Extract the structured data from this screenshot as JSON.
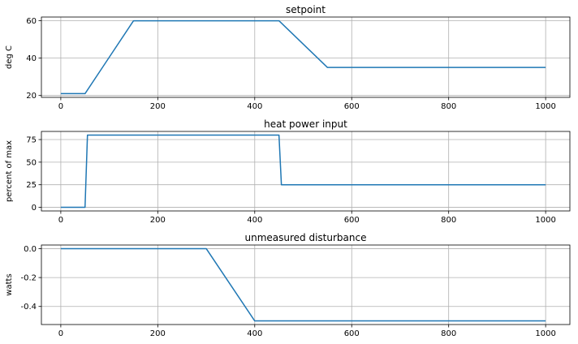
{
  "chart_data": [
    {
      "type": "line",
      "title": "setpoint",
      "xlabel": "",
      "ylabel": "deg C",
      "xlim": [
        -40,
        1050
      ],
      "ylim": [
        19,
        62
      ],
      "xticks": [
        0,
        200,
        400,
        600,
        800,
        1000
      ],
      "yticks": [
        20,
        40,
        60
      ],
      "grid": true,
      "series": [
        {
          "x": [
            0,
            50,
            150,
            450,
            550,
            1000
          ],
          "y": [
            21,
            21,
            60,
            60,
            35,
            35
          ]
        }
      ]
    },
    {
      "type": "line",
      "title": "heat power input",
      "xlabel": "",
      "ylabel": "percent of max",
      "xlim": [
        -40,
        1050
      ],
      "ylim": [
        -4,
        84
      ],
      "xticks": [
        0,
        200,
        400,
        600,
        800,
        1000
      ],
      "yticks": [
        0,
        25,
        50,
        75
      ],
      "grid": true,
      "series": [
        {
          "x": [
            0,
            50,
            55,
            450,
            455,
            1000
          ],
          "y": [
            0,
            0,
            80,
            80,
            25,
            25
          ]
        }
      ]
    },
    {
      "type": "line",
      "title": "unmeasured disturbance",
      "xlabel": "",
      "ylabel": "watts",
      "xlim": [
        -40,
        1050
      ],
      "ylim": [
        -0.525,
        0.025
      ],
      "xticks": [
        0,
        200,
        400,
        600,
        800,
        1000
      ],
      "yticks": [
        0.0,
        -0.2,
        -0.4
      ],
      "ytick_labels": [
        "0.0",
        "-0.2",
        "-0.4"
      ],
      "grid": true,
      "series": [
        {
          "x": [
            0,
            300,
            400,
            1000
          ],
          "y": [
            0,
            0,
            -0.5,
            -0.5
          ]
        }
      ]
    }
  ],
  "colors": {
    "series": "#1f77b4",
    "grid": "#b0b0b0"
  }
}
